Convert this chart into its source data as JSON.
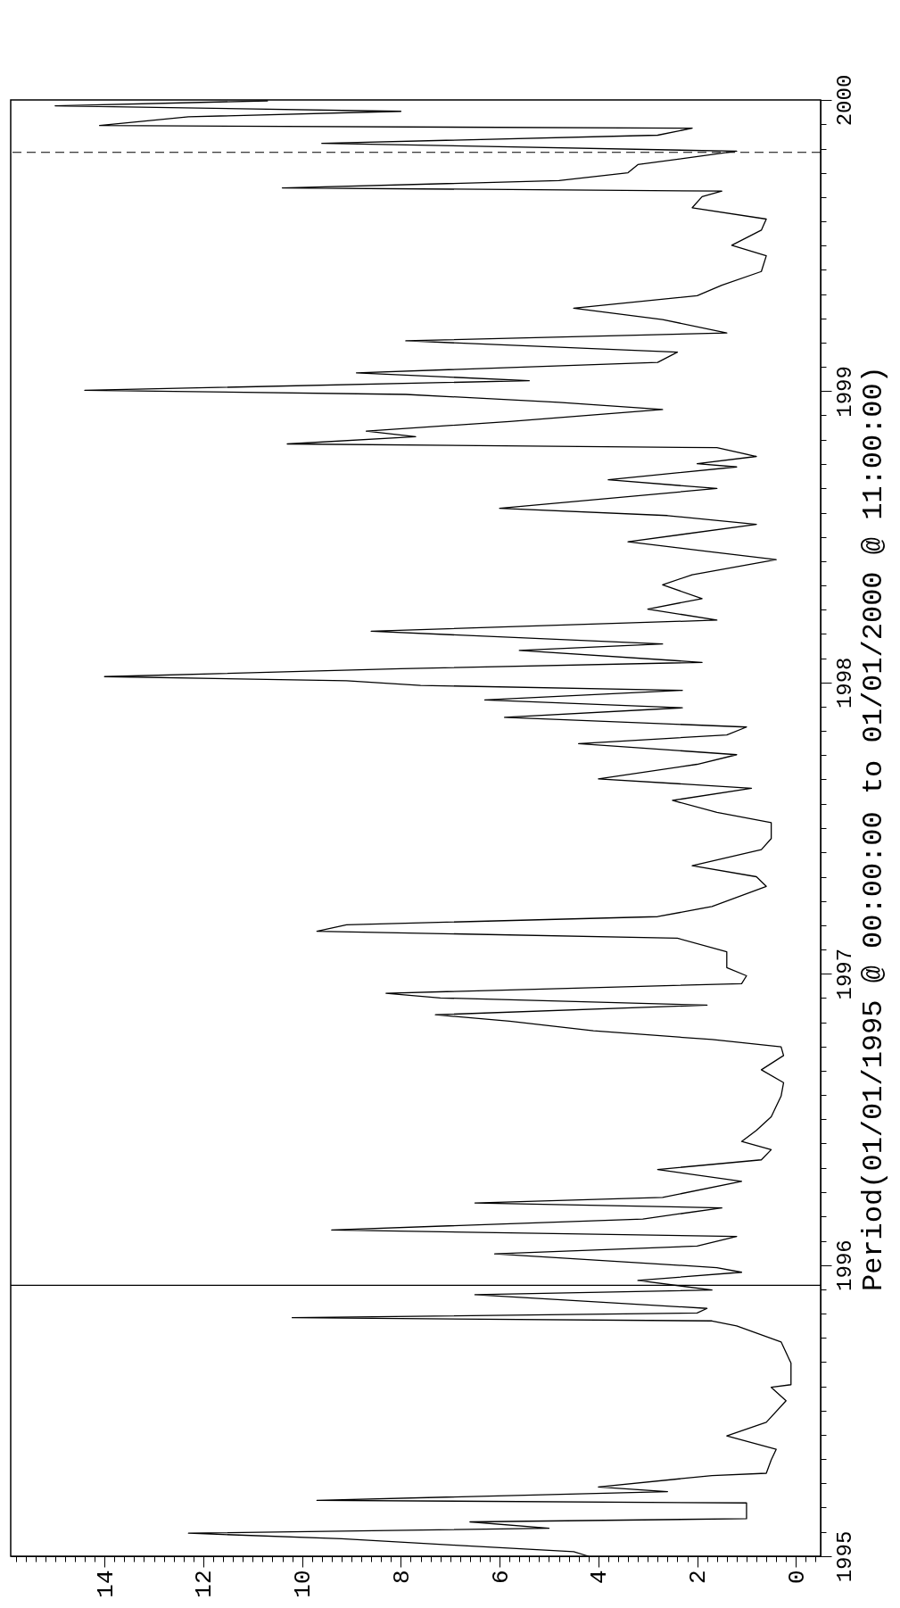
{
  "chart_data": {
    "type": "line",
    "ylabel": "Period(01/01/1995 @ 00:00:00 to 01/01/2000 @ 11:00:00)",
    "series": [
      {
        "color": "#000000",
        "values": [
          1995.0,
          1995.016,
          1995.038,
          1995.06,
          1995.079,
          1995.096,
          1995.118,
          1995.129,
          1995.183,
          1995.192,
          1995.222,
          1995.238,
          1995.277,
          1995.285,
          1995.331,
          1995.367,
          1995.413,
          1995.46,
          1995.534,
          1995.58,
          1995.589,
          1995.663,
          1995.736,
          1995.791,
          1995.808,
          1995.819,
          1995.835,
          1995.851,
          1995.898,
          1995.914,
          1995.947,
          1995.975,
          1995.991,
          1996.038,
          1996.065,
          1996.098,
          1996.12,
          1996.158,
          1996.196,
          1996.213,
          1996.232,
          1996.287,
          1996.328,
          1996.361,
          1996.396,
          1996.424,
          1996.462,
          1996.509,
          1996.58,
          1996.626,
          1996.67,
          1996.719,
          1996.749,
          1996.774,
          1996.804,
          1996.837,
          1996.859,
          1996.892,
          1996.917,
          1996.933,
          1996.966,
          1996.993,
          1997.021,
          1997.075,
          1997.122,
          1997.146,
          1997.168,
          1997.196,
          1997.231,
          1997.3,
          1997.333,
          1997.371,
          1997.426,
          1997.464,
          1997.519,
          1997.554,
          1997.595,
          1997.637,
          1997.669,
          1997.719,
          1997.752,
          1997.79,
          1997.82,
          1997.847,
          1997.88,
          1997.913,
          1997.94,
          1997.973,
          1997.99,
          1998.006,
          1998.02,
          1998.047,
          1998.069,
          1998.11,
          1998.132,
          1998.176,
          1998.214,
          1998.252,
          1998.288,
          1998.335,
          1998.37,
          1998.422,
          1998.45,
          1998.483,
          1998.543,
          1998.573,
          1998.598,
          1998.666,
          1998.696,
          1998.74,
          1998.751,
          1998.776,
          1998.806,
          1998.819,
          1998.844,
          1998.863,
          1998.896,
          1998.937,
          1998.962,
          1998.989,
          1999.003,
          1999.036,
          1999.063,
          1999.099,
          1999.134,
          1999.173,
          1999.2,
          1999.246,
          1999.285,
          1999.328,
          1999.364,
          1999.411,
          1999.465,
          1999.501,
          1999.553,
          1999.591,
          1999.63,
          1999.668,
          1999.687,
          1999.698,
          1999.723,
          1999.75,
          1999.778,
          1999.824,
          1999.851,
          1999.879,
          1999.903,
          1999.912,
          1999.942,
          1999.961,
          1999.98,
          1999.997
        ],
        "x": [
          4.2,
          4.5,
          6.9,
          9.2,
          12.3,
          5.0,
          6.6,
          1.0,
          1.0,
          9.7,
          2.6,
          4.0,
          1.7,
          0.6,
          0.5,
          0.4,
          1.4,
          0.6,
          0.2,
          0.5,
          0.1,
          0.1,
          0.3,
          1.2,
          1.7,
          10.2,
          2.0,
          1.8,
          6.5,
          1.7,
          3.2,
          1.1,
          1.6,
          6.1,
          2.0,
          1.2,
          9.4,
          3.1,
          1.5,
          6.5,
          2.7,
          1.1,
          2.8,
          0.7,
          0.5,
          1.1,
          0.8,
          0.5,
          0.3,
          0.25,
          0.7,
          0.25,
          0.3,
          1.7,
          4.1,
          5.8,
          7.3,
          1.8,
          7.2,
          8.3,
          1.1,
          1.0,
          1.4,
          1.4,
          2.4,
          9.7,
          9.1,
          2.8,
          1.7,
          0.6,
          0.8,
          2.1,
          0.7,
          0.5,
          0.5,
          1.6,
          2.5,
          0.9,
          4.0,
          2.0,
          1.2,
          4.4,
          1.4,
          1.0,
          5.9,
          2.3,
          6.3,
          2.3,
          7.6,
          9.1,
          14.0,
          8.0,
          1.9,
          5.6,
          2.7,
          8.6,
          1.6,
          3.0,
          1.9,
          2.7,
          2.1,
          0.4,
          1.8,
          3.4,
          0.8,
          2.6,
          6.0,
          1.6,
          3.8,
          1.2,
          2.0,
          0.8,
          1.6,
          10.3,
          7.7,
          8.7,
          5.8,
          2.7,
          4.8,
          7.9,
          14.4,
          5.4,
          8.9,
          2.8,
          2.4,
          7.9,
          1.4,
          2.7,
          4.5,
          2.0,
          1.5,
          0.7,
          0.6,
          1.3,
          0.7,
          0.6,
          2.1,
          1.9,
          1.5,
          10.4,
          4.8,
          3.4,
          3.2,
          1.2,
          9.6,
          2.8,
          2.1,
          14.1,
          12.3,
          8.0,
          15.0,
          10.7
        ]
      }
    ],
    "ylim": [
      1995,
      2000
    ],
    "yticks": [
      1995,
      {
        "value": 1995.083,
        "label": null
      },
      {
        "value": 1995.167,
        "label": null
      },
      {
        "value": 1995.25,
        "label": null
      },
      {
        "value": 1995.333,
        "label": null
      },
      {
        "value": 1995.417,
        "label": null
      },
      {
        "value": 1995.5,
        "label": null
      },
      {
        "value": 1995.583,
        "label": null
      },
      {
        "value": 1995.667,
        "label": null
      },
      {
        "value": 1995.75,
        "label": null
      },
      {
        "value": 1995.833,
        "label": null
      },
      {
        "value": 1995.917,
        "label": null
      },
      1996,
      {
        "value": 1996.083,
        "label": null
      },
      {
        "value": 1996.167,
        "label": null
      },
      {
        "value": 1996.25,
        "label": null
      },
      {
        "value": 1996.333,
        "label": null
      },
      {
        "value": 1996.417,
        "label": null
      },
      {
        "value": 1996.5,
        "label": null
      },
      {
        "value": 1996.583,
        "label": null
      },
      {
        "value": 1996.667,
        "label": null
      },
      {
        "value": 1996.75,
        "label": null
      },
      {
        "value": 1996.833,
        "label": null
      },
      {
        "value": 1996.917,
        "label": null
      },
      1997,
      {
        "value": 1997.083,
        "label": null
      },
      {
        "value": 1997.167,
        "label": null
      },
      {
        "value": 1997.25,
        "label": null
      },
      {
        "value": 1997.333,
        "label": null
      },
      {
        "value": 1997.417,
        "label": null
      },
      {
        "value": 1997.5,
        "label": null
      },
      {
        "value": 1997.583,
        "label": null
      },
      {
        "value": 1997.667,
        "label": null
      },
      {
        "value": 1997.75,
        "label": null
      },
      {
        "value": 1997.833,
        "label": null
      },
      {
        "value": 1997.917,
        "label": null
      },
      1998,
      {
        "value": 1998.083,
        "label": null
      },
      {
        "value": 1998.167,
        "label": null
      },
      {
        "value": 1998.25,
        "label": null
      },
      {
        "value": 1998.333,
        "label": null
      },
      {
        "value": 1998.417,
        "label": null
      },
      {
        "value": 1998.5,
        "label": null
      },
      {
        "value": 1998.583,
        "label": null
      },
      {
        "value": 1998.667,
        "label": null
      },
      {
        "value": 1998.75,
        "label": null
      },
      {
        "value": 1998.833,
        "label": null
      },
      {
        "value": 1998.917,
        "label": null
      },
      1999,
      {
        "value": 1999.083,
        "label": null
      },
      {
        "value": 1999.167,
        "label": null
      },
      {
        "value": 1999.25,
        "label": null
      },
      {
        "value": 1999.333,
        "label": null
      },
      {
        "value": 1999.417,
        "label": null
      },
      {
        "value": 1999.5,
        "label": null
      },
      {
        "value": 1999.583,
        "label": null
      },
      {
        "value": 1999.667,
        "label": null
      },
      {
        "value": 1999.75,
        "label": null
      },
      {
        "value": 1999.833,
        "label": null
      },
      {
        "value": 1999.917,
        "label": null
      },
      2000
    ],
    "xlim": [
      15.9,
      -0.5
    ],
    "xticks": [
      {
        "value": -0.4,
        "label": null
      },
      {
        "value": -0.2,
        "label": null
      },
      0,
      {
        "value": 0.2,
        "label": null
      },
      {
        "value": 0.4,
        "label": null
      },
      {
        "value": 0.6,
        "label": null
      },
      {
        "value": 0.8,
        "label": null
      },
      {
        "value": 1,
        "label": null
      },
      {
        "value": 1.2,
        "label": null
      },
      {
        "value": 1.4,
        "label": null
      },
      {
        "value": 1.6,
        "label": null
      },
      {
        "value": 1.8,
        "label": null
      },
      2,
      {
        "value": 2.2,
        "label": null
      },
      {
        "value": 2.4,
        "label": null
      },
      {
        "value": 2.6,
        "label": null
      },
      {
        "value": 2.8,
        "label": null
      },
      {
        "value": 3,
        "label": null
      },
      {
        "value": 3.2,
        "label": null
      },
      {
        "value": 3.4,
        "label": null
      },
      {
        "value": 3.6,
        "label": null
      },
      {
        "value": 3.8,
        "label": null
      },
      4,
      {
        "value": 4.2,
        "label": null
      },
      {
        "value": 4.4,
        "label": null
      },
      {
        "value": 4.6,
        "label": null
      },
      {
        "value": 4.8,
        "label": null
      },
      {
        "value": 5,
        "label": null
      },
      {
        "value": 5.2,
        "label": null
      },
      {
        "value": 5.4,
        "label": null
      },
      {
        "value": 5.6,
        "label": null
      },
      {
        "value": 5.8,
        "label": null
      },
      6,
      {
        "value": 6.2,
        "label": null
      },
      {
        "value": 6.4,
        "label": null
      },
      {
        "value": 6.6,
        "label": null
      },
      {
        "value": 6.8,
        "label": null
      },
      {
        "value": 7,
        "label": null
      },
      {
        "value": 7.2,
        "label": null
      },
      {
        "value": 7.4,
        "label": null
      },
      {
        "value": 7.6,
        "label": null
      },
      {
        "value": 7.8,
        "label": null
      },
      8,
      {
        "value": 8.2,
        "label": null
      },
      {
        "value": 8.4,
        "label": null
      },
      {
        "value": 8.6,
        "label": null
      },
      {
        "value": 8.8,
        "label": null
      },
      {
        "value": 9,
        "label": null
      },
      {
        "value": 9.2,
        "label": null
      },
      {
        "value": 9.4,
        "label": null
      },
      {
        "value": 9.6,
        "label": null
      },
      {
        "value": 9.8,
        "label": null
      },
      10,
      {
        "value": 10.2,
        "label": null
      },
      {
        "value": 10.4,
        "label": null
      },
      {
        "value": 10.6,
        "label": null
      },
      {
        "value": 10.8,
        "label": null
      },
      {
        "value": 11,
        "label": null
      },
      {
        "value": 11.2,
        "label": null
      },
      {
        "value": 11.4,
        "label": null
      },
      {
        "value": 11.6,
        "label": null
      },
      {
        "value": 11.8,
        "label": null
      },
      12,
      {
        "value": 12.2,
        "label": null
      },
      {
        "value": 12.4,
        "label": null
      },
      {
        "value": 12.6,
        "label": null
      },
      {
        "value": 12.8,
        "label": null
      },
      {
        "value": 13,
        "label": null
      },
      {
        "value": 13.2,
        "label": null
      },
      {
        "value": 13.4,
        "label": null
      },
      {
        "value": 13.6,
        "label": null
      },
      {
        "value": 13.8,
        "label": null
      },
      14,
      {
        "value": 14.2,
        "label": null
      },
      {
        "value": 14.4,
        "label": null
      },
      {
        "value": 14.6,
        "label": null
      },
      {
        "value": 14.8,
        "label": null
      },
      {
        "value": 15,
        "label": null
      },
      {
        "value": 15.2,
        "label": null
      },
      {
        "value": 15.4,
        "label": null
      },
      {
        "value": 15.6,
        "label": null
      },
      {
        "value": 15.8,
        "label": null
      }
    ],
    "ref_lines": [
      {
        "axis": "y",
        "value": 1995.93,
        "color": "#000000",
        "line_style": "solid"
      },
      {
        "axis": "y",
        "value": 1999.82,
        "color": "#000000",
        "line_style": "dashed"
      }
    ],
    "grid": false
  }
}
